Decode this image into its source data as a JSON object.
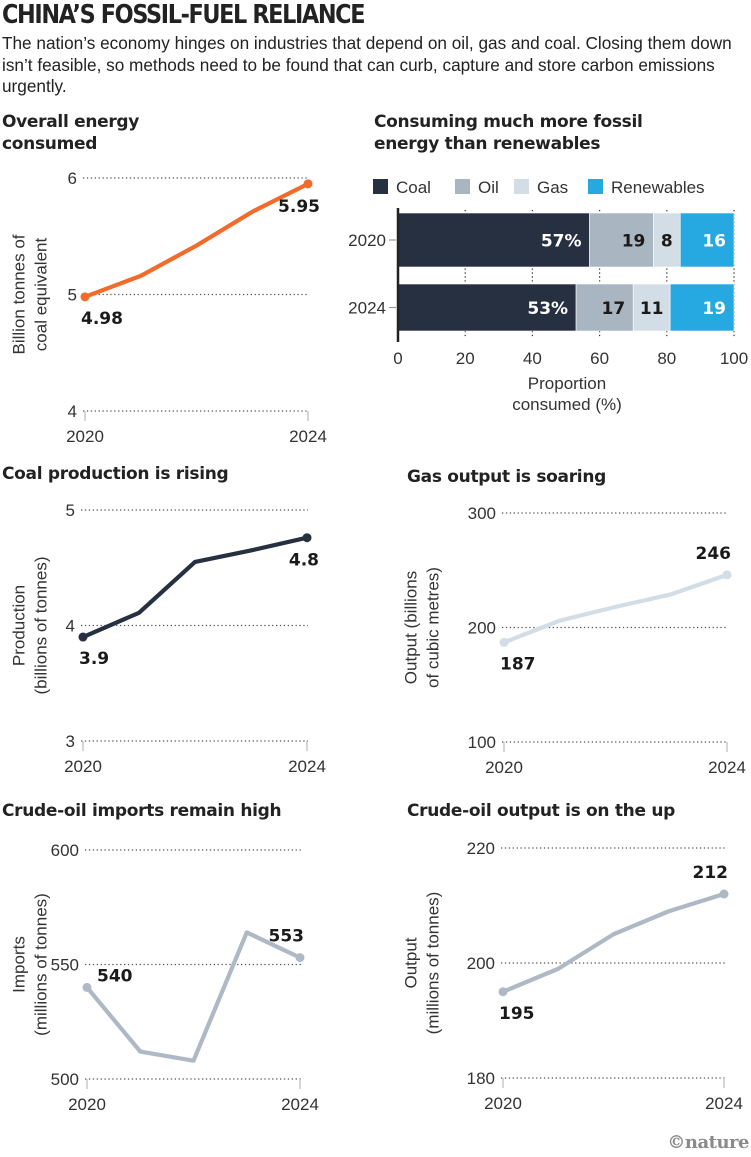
{
  "header": {
    "title": "CHINA’S FOSSIL-FUEL RELIANCE",
    "subtitle": "The nation’s economy hinges on industries that depend on oil, gas and coal. Closing them down isn’t feasible, so methods need to be found that can curb, capture and store carbon emissions urgently."
  },
  "credit": "©nature",
  "colors": {
    "coal": "#263041",
    "oil": "#a9b5c1",
    "gas": "#d3dde5",
    "renewables": "#25a9e0",
    "energy_line": "#f26b2a",
    "coal_line": "#263041",
    "gas_line": "#d3dde5",
    "imports_line": "#aeb9c5",
    "crude_output_line": "#aeb9c5"
  },
  "chart_data": [
    {
      "id": "energy",
      "type": "line",
      "title": "Overall energy consumed",
      "xlabel": "",
      "ylabel": "Billion tonnes of coal equivalent",
      "x": [
        2020,
        2021,
        2022,
        2023,
        2024
      ],
      "values": [
        4.98,
        5.16,
        5.42,
        5.71,
        5.95
      ],
      "ylim": [
        4,
        6
      ],
      "yticks": [
        "4",
        "5",
        "6"
      ],
      "xticks": [
        "2020",
        "2024"
      ],
      "labels": {
        "start": "4.98",
        "end": "5.95"
      },
      "grid": true
    },
    {
      "id": "mix",
      "type": "bar",
      "orientation": "horizontal-stacked",
      "title": "Consuming much more fossil energy than renewables",
      "categories": [
        "2020",
        "2024"
      ],
      "series": [
        {
          "name": "Coal",
          "values": [
            57,
            53
          ],
          "labels": [
            "57%",
            "53%"
          ]
        },
        {
          "name": "Oil",
          "values": [
            19,
            17
          ],
          "labels": [
            "19",
            "17"
          ]
        },
        {
          "name": "Gas",
          "values": [
            8,
            11
          ],
          "labels": [
            "8",
            "11"
          ]
        },
        {
          "name": "Renewables",
          "values": [
            16,
            19
          ],
          "labels": [
            "16",
            "19"
          ]
        }
      ],
      "xlabel": "Proportion consumed (%)",
      "xlim": [
        0,
        100
      ],
      "xticks": [
        "0",
        "20",
        "40",
        "60",
        "80",
        "100"
      ],
      "legend": "top",
      "grid": true
    },
    {
      "id": "coal",
      "type": "line",
      "title": "Coal production is rising",
      "ylabel": "Production (billions of tonnes)",
      "x": [
        2020,
        2021,
        2022,
        2023,
        2024
      ],
      "values": [
        3.9,
        4.11,
        4.55,
        4.65,
        4.76
      ],
      "ylim": [
        3,
        5
      ],
      "yticks": [
        "3",
        "4",
        "5"
      ],
      "xticks": [
        "2020",
        "2024"
      ],
      "labels": {
        "start": "3.9",
        "end": "4.8"
      },
      "grid": true
    },
    {
      "id": "gas",
      "type": "line",
      "title": "Gas output is soaring",
      "ylabel": "Output (billions of cubic metres)",
      "x": [
        2020,
        2021,
        2022,
        2023,
        2024
      ],
      "values": [
        187,
        206,
        218,
        229,
        246
      ],
      "ylim": [
        100,
        300
      ],
      "yticks": [
        "100",
        "200",
        "300"
      ],
      "xticks": [
        "2020",
        "2024"
      ],
      "labels": {
        "start": "187",
        "end": "246"
      },
      "grid": true
    },
    {
      "id": "imports",
      "type": "line",
      "title": "Crude-oil imports remain high",
      "ylabel": "Imports (millions of tonnes)",
      "x": [
        2020,
        2021,
        2022,
        2023,
        2024
      ],
      "values": [
        540,
        512,
        508,
        564,
        553
      ],
      "ylim": [
        500,
        600
      ],
      "yticks": [
        "500",
        "550",
        "600"
      ],
      "xticks": [
        "2020",
        "2024"
      ],
      "labels": {
        "start": "540",
        "end": "553"
      },
      "grid": true
    },
    {
      "id": "crude",
      "type": "line",
      "title": "Crude-oil output is on the up",
      "ylabel": "Output (millions of tonnes)",
      "x": [
        2020,
        2021,
        2022,
        2023,
        2024
      ],
      "values": [
        195,
        199,
        205,
        209,
        212
      ],
      "ylim": [
        180,
        220
      ],
      "yticks": [
        "180",
        "200",
        "220"
      ],
      "xticks": [
        "2020",
        "2024"
      ],
      "labels": {
        "start": "195",
        "end": "212"
      },
      "grid": true
    }
  ]
}
